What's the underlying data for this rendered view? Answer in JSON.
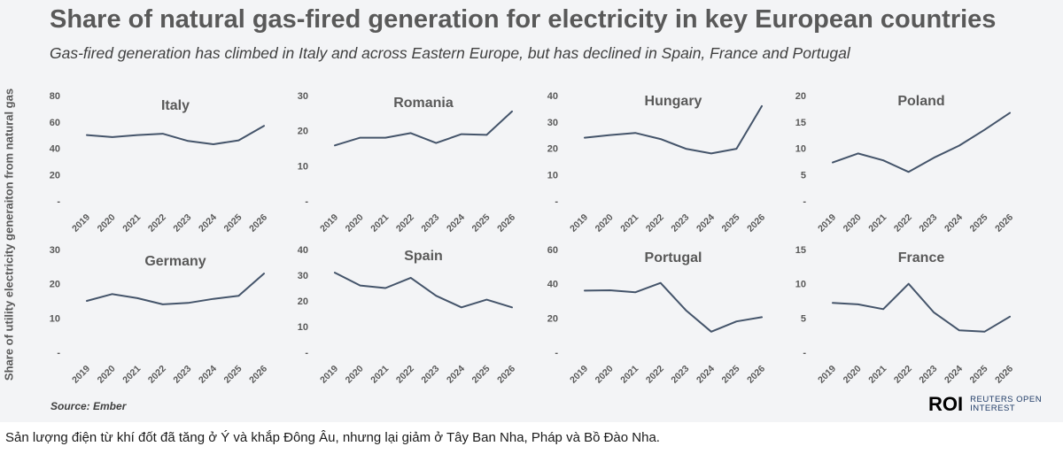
{
  "title": "Share of natural gas-fired generation for electricity in key European countries",
  "subtitle": "Gas-fired generation has climbed in Italy and across Eastern Europe, but has declined in Spain, France and Portugal",
  "ylabel": "Share of utility electricity generaiton from natural gas",
  "source": "Source: Ember",
  "logo": {
    "mark": "ROI",
    "line1": "REUTERS OPEN",
    "line2": "INTEREST"
  },
  "caption": "Sản lượng điện từ khí đốt đã tăng ở Ý và khắp Đông Âu, nhưng lại giảm ở Tây Ban Nha, Pháp và Bồ Đào Nha.",
  "colors": {
    "line": "#44546a",
    "panel": "#f3f4f6",
    "text": "#595959"
  },
  "chart_data": [
    {
      "type": "line",
      "title": "Italy",
      "x": [
        "2019",
        "2020",
        "2021",
        "2022",
        "2023",
        "2024",
        "2025",
        "2026"
      ],
      "values": [
        50,
        48.5,
        50,
        51,
        45.5,
        43,
        46,
        57
      ],
      "yticks": [
        "80",
        "60",
        "40",
        "20",
        "-"
      ],
      "ylim": [
        0,
        80
      ]
    },
    {
      "type": "line",
      "title": "Romania",
      "x": [
        "2019",
        "2020",
        "2021",
        "2022",
        "2023",
        "2024",
        "2025",
        "2026"
      ],
      "values": [
        15.8,
        18,
        18,
        19.3,
        16.5,
        19,
        18.8,
        25.5
      ],
      "yticks": [
        "30",
        "20",
        "10",
        "-"
      ],
      "ylim": [
        0,
        30
      ]
    },
    {
      "type": "line",
      "title": "Hungary",
      "x": [
        "2019",
        "2020",
        "2021",
        "2022",
        "2023",
        "2024",
        "2025",
        "2026"
      ],
      "values": [
        24,
        25,
        25.8,
        23.5,
        19.8,
        18,
        19.8,
        36
      ],
      "yticks": [
        "40",
        "30",
        "20",
        "10",
        "-"
      ],
      "ylim": [
        0,
        40
      ]
    },
    {
      "type": "line",
      "title": "Poland",
      "x": [
        "2019",
        "2020",
        "2021",
        "2022",
        "2023",
        "2024",
        "2025",
        "2026"
      ],
      "values": [
        7.3,
        9,
        7.7,
        5.5,
        8.2,
        10.5,
        13.5,
        16.7
      ],
      "yticks": [
        "20",
        "15",
        "10",
        "5",
        "-"
      ],
      "ylim": [
        0,
        20
      ]
    },
    {
      "type": "line",
      "title": "Germany",
      "x": [
        "2019",
        "2020",
        "2021",
        "2022",
        "2023",
        "2024",
        "2025",
        "2026"
      ],
      "values": [
        15,
        17,
        15.8,
        14,
        14.4,
        15.6,
        16.5,
        23
      ],
      "yticks": [
        "30",
        "20",
        "10",
        "-"
      ],
      "ylim": [
        0,
        30
      ]
    },
    {
      "type": "line",
      "title": "Spain",
      "x": [
        "2019",
        "2020",
        "2021",
        "2022",
        "2023",
        "2024",
        "2025",
        "2026"
      ],
      "values": [
        31,
        26,
        25,
        29,
        22,
        17.5,
        20.5,
        17.5
      ],
      "yticks": [
        "40",
        "30",
        "20",
        "10",
        "-"
      ],
      "ylim": [
        0,
        40
      ]
    },
    {
      "type": "line",
      "title": "Portugal",
      "x": [
        "2019",
        "2020",
        "2021",
        "2022",
        "2023",
        "2024",
        "2025",
        "2026"
      ],
      "values": [
        36,
        36.2,
        35,
        40.5,
        24.5,
        12,
        18,
        20.5
      ],
      "yticks": [
        "60",
        "40",
        "20",
        "-"
      ],
      "ylim": [
        0,
        60
      ]
    },
    {
      "type": "line",
      "title": "France",
      "x": [
        "2019",
        "2020",
        "2021",
        "2022",
        "2023",
        "2024",
        "2025",
        "2026"
      ],
      "values": [
        7.2,
        7,
        6.3,
        10,
        5.8,
        3.2,
        3,
        5.2
      ],
      "yticks": [
        "15",
        "10",
        "5",
        "-"
      ],
      "ylim": [
        0,
        15
      ]
    }
  ]
}
